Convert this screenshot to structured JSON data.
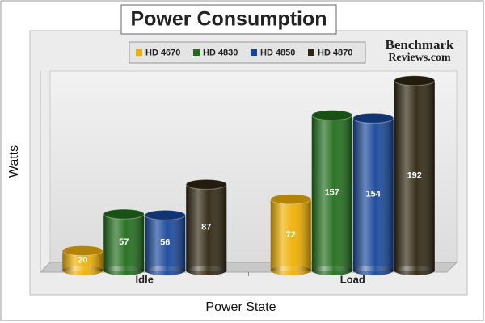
{
  "chart_data": {
    "type": "bar3d",
    "title": "Power Consumption",
    "watermark": [
      "Benchmark",
      "Reviews.com"
    ],
    "y_label": "Watts",
    "x_label": "Power State",
    "categories": [
      "Idle",
      "Load"
    ],
    "series": [
      {
        "name": "HD 4670",
        "color": "#f0b000",
        "values": [
          20,
          72
        ]
      },
      {
        "name": "HD 4830",
        "color": "#1f6e1a",
        "values": [
          57,
          157
        ]
      },
      {
        "name": "HD 4850",
        "color": "#17479a",
        "values": [
          56,
          154
        ]
      },
      {
        "name": "HD 4870",
        "color": "#2f2610",
        "values": [
          87,
          192
        ]
      }
    ],
    "ylim": [
      0,
      200
    ]
  }
}
